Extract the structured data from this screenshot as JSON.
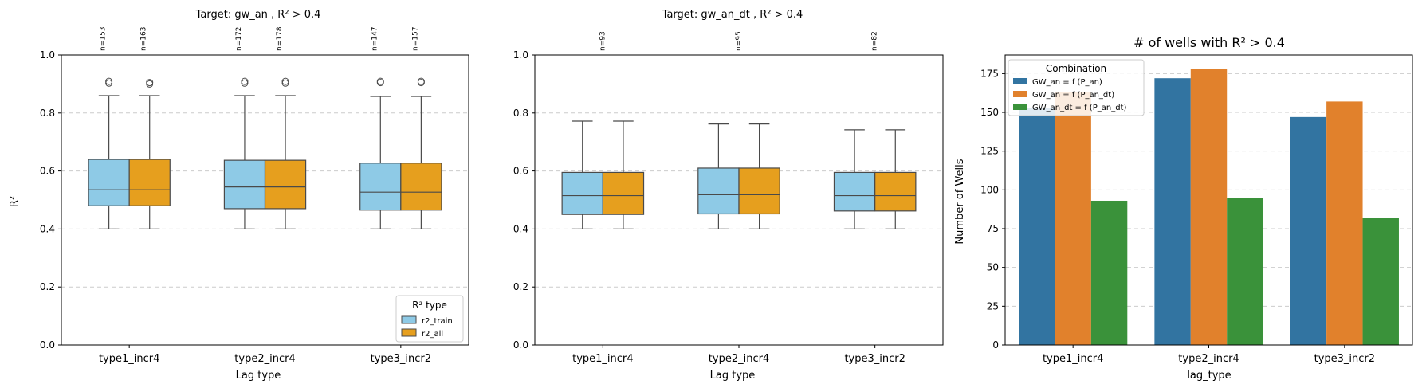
{
  "chart_data": [
    {
      "type": "box",
      "title": "Target: gw_an , R² > 0.4",
      "xlabel": "Lag type",
      "ylabel": "R²",
      "ylim": [
        0.0,
        1.0
      ],
      "yticks": [
        "0.0",
        "0.2",
        "0.4",
        "0.6",
        "0.8",
        "1.0"
      ],
      "grid": "y-dashed",
      "categories": [
        "type1_incr4",
        "type2_incr4",
        "type3_incr2"
      ],
      "legend": {
        "title": "R² type",
        "placement": "lower-right",
        "entries": [
          "r2_train",
          "r2_all"
        ]
      },
      "series": [
        {
          "name": "r2_train",
          "color": "#8ecae6",
          "boxes": [
            {
              "whisker_low": 0.4,
              "q1": 0.48,
              "median": 0.535,
              "q3": 0.64,
              "whisker_high": 0.86,
              "outliers": [
                0.903,
                0.909
              ],
              "n_label": "n=153"
            },
            {
              "whisker_low": 0.4,
              "q1": 0.47,
              "median": 0.545,
              "q3": 0.637,
              "whisker_high": 0.86,
              "outliers": [
                0.903,
                0.909
              ],
              "n_label": "n=172"
            },
            {
              "whisker_low": 0.4,
              "q1": 0.465,
              "median": 0.527,
              "q3": 0.627,
              "whisker_high": 0.857,
              "outliers": [
                0.905,
                0.909
              ],
              "n_label": "n=147"
            }
          ]
        },
        {
          "name": "r2_all",
          "color": "#e69f1e",
          "boxes": [
            {
              "whisker_low": 0.4,
              "q1": 0.48,
              "median": 0.535,
              "q3": 0.64,
              "whisker_high": 0.86,
              "outliers": [
                0.9,
                0.905
              ],
              "n_label": "n=163"
            },
            {
              "whisker_low": 0.4,
              "q1": 0.47,
              "median": 0.545,
              "q3": 0.637,
              "whisker_high": 0.86,
              "outliers": [
                0.903,
                0.909
              ],
              "n_label": "n=178"
            },
            {
              "whisker_low": 0.4,
              "q1": 0.465,
              "median": 0.527,
              "q3": 0.627,
              "whisker_high": 0.857,
              "outliers": [
                0.905,
                0.909
              ],
              "n_label": "n=157"
            }
          ]
        }
      ]
    },
    {
      "type": "box",
      "title": "Target: gw_an_dt , R² > 0.4",
      "xlabel": "Lag type",
      "ylabel": "",
      "ylim": [
        0.0,
        1.0
      ],
      "yticks": [
        "0.0",
        "0.2",
        "0.4",
        "0.6",
        "0.8",
        "1.0"
      ],
      "grid": "y-dashed",
      "categories": [
        "type1_incr4",
        "type2_incr4",
        "type3_incr2"
      ],
      "n_labels": [
        "n=93",
        "n=95",
        "n=82"
      ],
      "series": [
        {
          "name": "r2_train",
          "color": "#8ecae6",
          "boxes": [
            {
              "whisker_low": 0.4,
              "q1": 0.45,
              "median": 0.515,
              "q3": 0.595,
              "whisker_high": 0.772,
              "outliers": []
            },
            {
              "whisker_low": 0.4,
              "q1": 0.452,
              "median": 0.518,
              "q3": 0.61,
              "whisker_high": 0.762,
              "outliers": []
            },
            {
              "whisker_low": 0.4,
              "q1": 0.462,
              "median": 0.515,
              "q3": 0.595,
              "whisker_high": 0.742,
              "outliers": []
            }
          ]
        },
        {
          "name": "r2_all",
          "color": "#e69f1e",
          "boxes": [
            {
              "whisker_low": 0.4,
              "q1": 0.45,
              "median": 0.515,
              "q3": 0.595,
              "whisker_high": 0.772,
              "outliers": []
            },
            {
              "whisker_low": 0.4,
              "q1": 0.452,
              "median": 0.518,
              "q3": 0.61,
              "whisker_high": 0.762,
              "outliers": []
            },
            {
              "whisker_low": 0.4,
              "q1": 0.462,
              "median": 0.515,
              "q3": 0.595,
              "whisker_high": 0.742,
              "outliers": []
            }
          ]
        }
      ]
    },
    {
      "type": "bar",
      "title": "# of wells with R² > 0.4",
      "xlabel": "lag_type",
      "ylabel": "Number of Wells",
      "ylim": [
        0,
        187
      ],
      "yticks": [
        "0",
        "25",
        "50",
        "75",
        "100",
        "125",
        "150",
        "175"
      ],
      "grid": "y-dashed",
      "categories": [
        "type1_incr4",
        "type2_incr4",
        "type3_incr2"
      ],
      "legend": {
        "title": "Combination",
        "placement": "top-left"
      },
      "series": [
        {
          "name": "GW_an = f (P_an)",
          "color": "#3274a1",
          "values": [
            153,
            172,
            147
          ]
        },
        {
          "name": "GW_an = f (P_an_dt)",
          "color": "#e1812c",
          "values": [
            163,
            178,
            157
          ]
        },
        {
          "name": "GW_an_dt = f (P_an_dt)",
          "color": "#3a923a",
          "values": [
            93,
            95,
            82
          ]
        }
      ]
    }
  ]
}
